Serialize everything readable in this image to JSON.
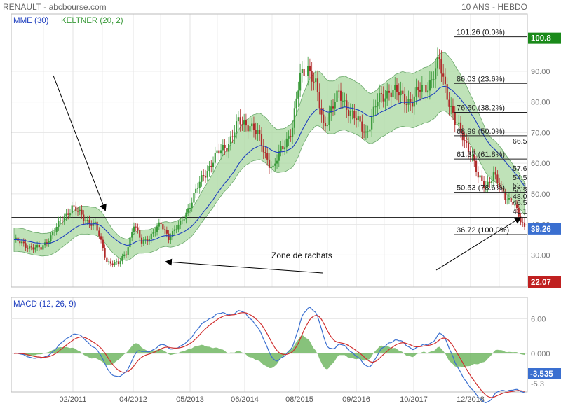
{
  "header": {
    "left": "RENAULT - abcbourse.com",
    "right": "10 ANS - HEBDO"
  },
  "colors": {
    "up": "#3a9a3a",
    "down": "#b02a2a",
    "ema": "#1f3fbf",
    "band_fill": "#a9d8a0",
    "band_edge": "#6aa86a",
    "macd": "#3a6fd0",
    "signal": "#d03030",
    "hist": "#5fae4f",
    "label_last": "#3a6fd0",
    "label_top": "#1a8a1a",
    "label_bottom": "#c02020"
  },
  "chart_data": [
    {
      "type": "candlestick",
      "legend": [
        "MME (30)",
        "KELTNER (20, 2)"
      ],
      "ylim": [
        20,
        105
      ],
      "y_ticks": [
        "30.00",
        "40.00",
        "50.00",
        "60.00",
        "70.00",
        "80.00",
        "90.00"
      ],
      "x_ticks": [
        "02/2011",
        "04/2012",
        "05/2013",
        "06/2014",
        "08/2015",
        "09/2016",
        "10/2017",
        "12/2018"
      ],
      "price_labels": {
        "last": "39.26",
        "top": "100.8",
        "bottom": "22.07"
      },
      "horizontal_line": 42.3,
      "fibonacci": [
        {
          "label": "101.26  (0.0%)",
          "value": 101.26
        },
        {
          "label": "86.03  (23.6%)",
          "value": 86.03
        },
        {
          "label": "76.60  (38.2%)",
          "value": 76.6
        },
        {
          "label": "68.99  (50.0%)",
          "value": 68.99
        },
        {
          "label": "61.37  (61.8%)",
          "value": 61.37
        },
        {
          "label": "50.53  (78.6%)",
          "value": 50.53
        },
        {
          "label": "36.72  (100.0%)",
          "value": 36.72
        }
      ],
      "right_values": [
        "66.5",
        "57.6",
        "54.5",
        "52.1",
        "50.3",
        "48.0",
        "46.5",
        "43.1"
      ],
      "annotation": "Zone de rachats",
      "series_path": [
        [
          0,
          35
        ],
        [
          6,
          33
        ],
        [
          14,
          32
        ],
        [
          22,
          39
        ],
        [
          30,
          46
        ],
        [
          36,
          42
        ],
        [
          42,
          40
        ],
        [
          48,
          28
        ],
        [
          54,
          27
        ],
        [
          58,
          31
        ],
        [
          62,
          40
        ],
        [
          66,
          34
        ],
        [
          70,
          36
        ],
        [
          76,
          40
        ],
        [
          80,
          36
        ],
        [
          86,
          40
        ],
        [
          92,
          48
        ],
        [
          98,
          56
        ],
        [
          104,
          62
        ],
        [
          110,
          66
        ],
        [
          116,
          73
        ],
        [
          122,
          73
        ],
        [
          126,
          69
        ],
        [
          130,
          63
        ],
        [
          134,
          58
        ],
        [
          138,
          64
        ],
        [
          144,
          72
        ],
        [
          148,
          88
        ],
        [
          152,
          92
        ],
        [
          156,
          85
        ],
        [
          160,
          72
        ],
        [
          164,
          78
        ],
        [
          168,
          82
        ],
        [
          172,
          79
        ],
        [
          178,
          73
        ],
        [
          182,
          70
        ],
        [
          188,
          80
        ],
        [
          194,
          84
        ],
        [
          200,
          82
        ],
        [
          206,
          80
        ],
        [
          210,
          84
        ],
        [
          216,
          87
        ],
        [
          220,
          93
        ],
        [
          224,
          83
        ],
        [
          228,
          73
        ],
        [
          232,
          69
        ],
        [
          236,
          64
        ],
        [
          240,
          55
        ],
        [
          244,
          53
        ],
        [
          248,
          56
        ],
        [
          252,
          51
        ],
        [
          258,
          47
        ],
        [
          262,
          41
        ],
        [
          264,
          39.26
        ]
      ]
    },
    {
      "type": "line",
      "legend": [
        "MACD (12, 26, 9)"
      ],
      "ylim": [
        -7.5,
        8
      ],
      "y_ticks": [
        "6.00",
        "0.000"
      ],
      "value_labels": {
        "macd": "-3.535",
        "signal": "-5.3"
      }
    }
  ]
}
